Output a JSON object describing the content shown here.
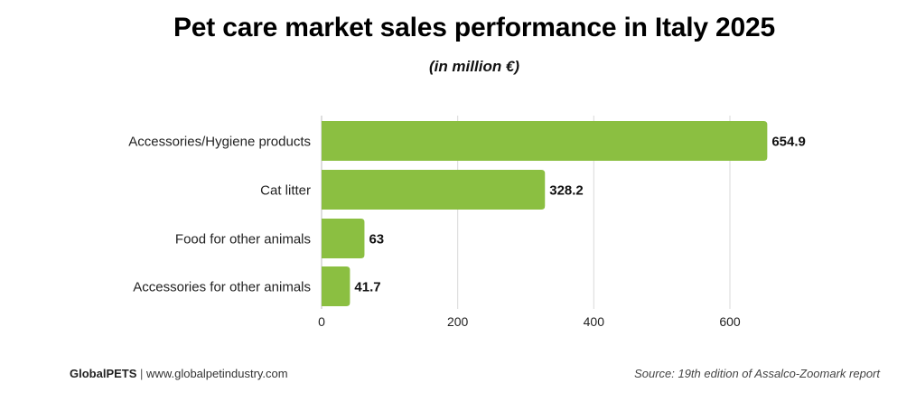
{
  "header": {
    "title": "Pet care market sales performance in Italy 2025",
    "subtitle": "(in million €)"
  },
  "footer": {
    "brand": "GlobalPETS",
    "separator": "|",
    "website": "www.globalpetindustry.com",
    "source": "Source: 19th edition of Assalco-Zoomark report"
  },
  "colors": {
    "bar": "#8bbf41",
    "grid": "#d9d9d9",
    "text": "#111111"
  },
  "chart_data": {
    "type": "bar",
    "orientation": "horizontal",
    "categories": [
      "Accessories/Hygiene products",
      "Cat litter",
      "Food for other animals",
      "Accessories for other animals"
    ],
    "values": [
      654.9,
      328.2,
      63,
      41.7
    ],
    "value_labels": [
      "654.9",
      "328.2",
      "63",
      "41.7"
    ],
    "xticks": [
      0,
      200,
      400,
      600
    ],
    "xtick_labels": [
      "0",
      "200",
      "400",
      "600"
    ],
    "xlim": [
      0,
      690
    ],
    "grid": true,
    "legend": "none"
  }
}
